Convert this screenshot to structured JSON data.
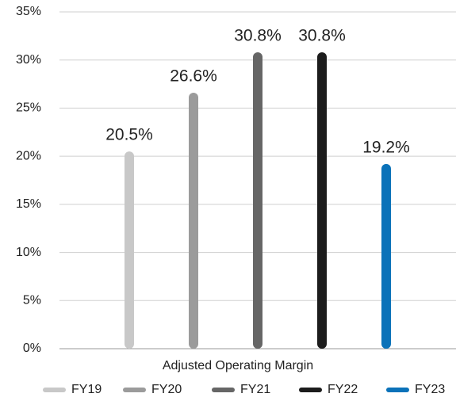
{
  "chart_data": {
    "type": "bar",
    "categories": [
      "Adjusted Operating Margin"
    ],
    "series": [
      {
        "name": "FY19",
        "color": "#c8c8c8",
        "values": [
          20.5
        ],
        "value_labels": [
          "20.5%"
        ]
      },
      {
        "name": "FY20",
        "color": "#9b9b9b",
        "values": [
          26.6
        ],
        "value_labels": [
          "26.6%"
        ]
      },
      {
        "name": "FY21",
        "color": "#666666",
        "values": [
          30.8
        ],
        "value_labels": [
          "30.8%"
        ]
      },
      {
        "name": "FY22",
        "color": "#1c1c1c",
        "values": [
          30.8
        ],
        "value_labels": [
          "30.8%"
        ]
      },
      {
        "name": "FY23",
        "color": "#0b72b9",
        "values": [
          19.2
        ],
        "value_labels": [
          "19.2%"
        ]
      }
    ],
    "ylim": [
      0,
      35
    ],
    "yticks": [
      {
        "value": 0,
        "label": "0%"
      },
      {
        "value": 5,
        "label": "5%"
      },
      {
        "value": 10,
        "label": "10%"
      },
      {
        "value": 15,
        "label": "15%"
      },
      {
        "value": 20,
        "label": "20%"
      },
      {
        "value": 25,
        "label": "25%"
      },
      {
        "value": 30,
        "label": "30%"
      },
      {
        "value": 35,
        "label": "35%"
      }
    ],
    "grid": true,
    "legend": "bottom"
  }
}
